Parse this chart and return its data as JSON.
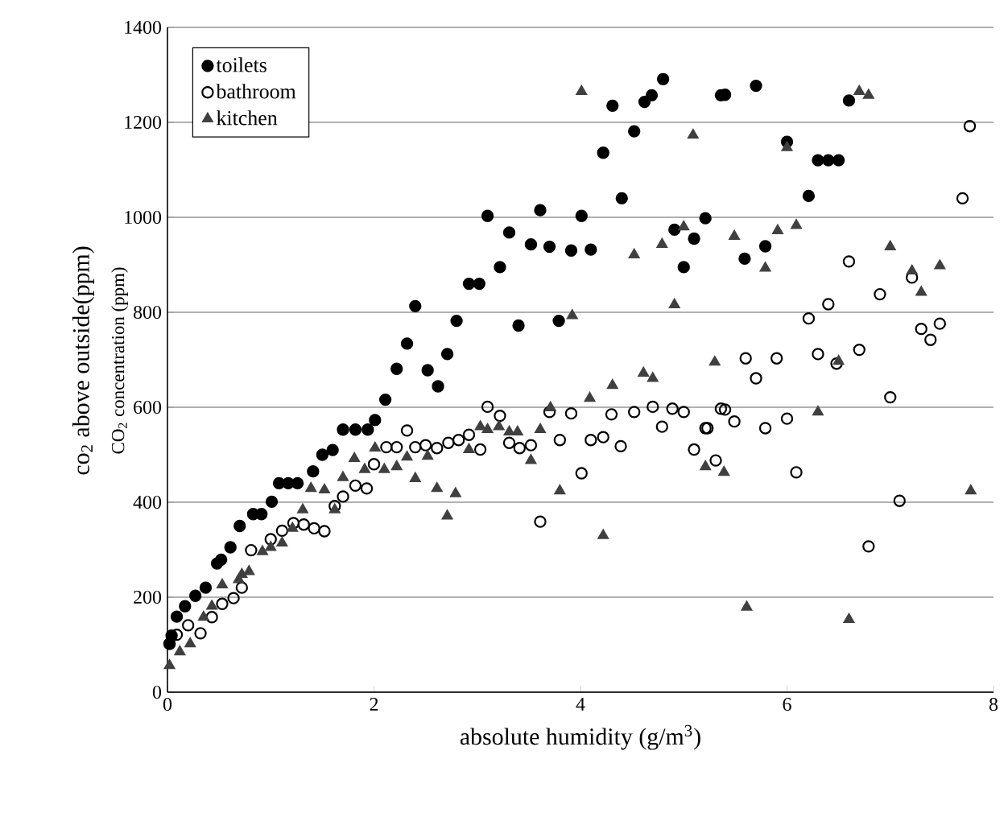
{
  "chart_data": {
    "type": "scatter",
    "xlabel": "absolute humidity (g/m$^{3}$)",
    "ylabel": "co$_{2}$ above outside(ppm)",
    "annotations": [
      "CO$_{2}$ concentration (ppm)"
    ],
    "xlim": [
      0,
      8
    ],
    "xticks": [
      0,
      2,
      4,
      6,
      8
    ],
    "ylim": [
      0,
      1400
    ],
    "yticks": [
      0,
      200,
      400,
      600,
      800,
      1000,
      1200,
      1400
    ],
    "grid": "y",
    "legend": "top left",
    "series": [
      {
        "name": "toilets",
        "color": "#000000",
        "marker": "circle",
        "x": [
          0.02,
          0.04,
          0.09,
          0.17,
          0.27,
          0.37,
          0.48,
          0.52,
          0.61,
          0.7,
          0.83,
          0.91,
          1.01,
          1.08,
          1.17,
          1.26,
          1.41,
          1.5,
          1.6,
          1.7,
          1.82,
          1.94,
          2.01,
          2.11,
          2.22,
          2.32,
          2.4,
          2.52,
          2.62,
          2.71,
          2.8,
          2.92,
          3.02,
          3.1,
          3.22,
          3.31,
          3.4,
          3.52,
          3.61,
          3.7,
          3.79,
          3.91,
          4.01,
          4.1,
          4.22,
          4.31,
          4.4,
          4.52,
          4.62,
          4.69,
          4.8,
          4.91,
          5.0,
          5.1,
          5.21,
          5.36,
          5.4,
          5.59,
          5.7,
          5.79,
          6.0,
          6.21,
          6.3,
          6.4,
          6.5,
          6.6
        ],
        "values": [
          102,
          119,
          159,
          181,
          203,
          220,
          271,
          279,
          305,
          350,
          375,
          375,
          401,
          440,
          440,
          440,
          465,
          500,
          510,
          553,
          553,
          553,
          573,
          616,
          681,
          734,
          813,
          678,
          644,
          712,
          782,
          860,
          860,
          1003,
          895,
          968,
          772,
          943,
          1015,
          938,
          782,
          930,
          1003,
          932,
          1136,
          1235,
          1040,
          1181,
          1243,
          1257,
          1291,
          974,
          895,
          955,
          998,
          1257,
          1258,
          913,
          1277,
          939,
          1159,
          1045,
          1120,
          1120,
          1120,
          1246
        ]
      },
      {
        "name": "bathroom",
        "color": "#000000",
        "marker": "open circle",
        "x": [
          0.02,
          0.09,
          0.2,
          0.32,
          0.43,
          0.53,
          0.64,
          0.72,
          0.81,
          1.0,
          1.11,
          1.22,
          1.32,
          1.42,
          1.52,
          1.62,
          1.7,
          1.82,
          1.93,
          2.0,
          2.12,
          2.22,
          2.32,
          2.4,
          2.5,
          2.61,
          2.72,
          2.82,
          2.92,
          3.03,
          3.1,
          3.22,
          3.31,
          3.41,
          3.52,
          3.61,
          3.7,
          3.8,
          3.91,
          4.01,
          4.1,
          4.22,
          4.3,
          4.39,
          4.52,
          4.7,
          4.79,
          4.89,
          5.0,
          5.1,
          5.21,
          5.23,
          5.31,
          5.36,
          5.4,
          5.49,
          5.6,
          5.7,
          5.79,
          5.9,
          6.0,
          6.09,
          6.21,
          6.3,
          6.4,
          6.48,
          6.6,
          6.7,
          6.79,
          6.9,
          7.0,
          7.09,
          7.21,
          7.3,
          7.39,
          7.48,
          7.7,
          7.77
        ],
        "values": [
          102,
          121,
          141,
          124,
          158,
          186,
          198,
          220,
          299,
          322,
          340,
          356,
          353,
          345,
          339,
          392,
          412,
          435,
          429,
          480,
          516,
          516,
          551,
          516,
          520,
          514,
          525,
          531,
          542,
          511,
          601,
          582,
          525,
          514,
          520,
          359,
          590,
          531,
          587,
          461,
          531,
          537,
          585,
          518,
          590,
          601,
          559,
          597,
          590,
          511,
          556,
          556,
          488,
          597,
          595,
          570,
          703,
          661,
          556,
          703,
          576,
          463,
          787,
          712,
          817,
          692,
          907,
          721,
          307,
          838,
          621,
          403,
          873,
          765,
          742,
          776,
          1040,
          1192
        ]
      },
      {
        "name": "kitchen",
        "color": "#404040",
        "marker": "triangle",
        "x": [
          0.02,
          0.12,
          0.22,
          0.35,
          0.43,
          0.53,
          0.69,
          0.72,
          0.79,
          0.92,
          1.0,
          1.11,
          1.21,
          1.31,
          1.39,
          1.52,
          1.62,
          1.7,
          1.81,
          1.91,
          2.01,
          2.1,
          2.22,
          2.32,
          2.4,
          2.52,
          2.61,
          2.71,
          2.79,
          2.92,
          3.03,
          3.1,
          3.21,
          3.31,
          3.39,
          3.52,
          3.61,
          3.71,
          3.8,
          3.92,
          4.01,
          4.09,
          4.22,
          4.31,
          4.52,
          4.61,
          4.7,
          4.79,
          4.91,
          5.0,
          5.09,
          5.21,
          5.3,
          5.39,
          5.49,
          5.61,
          5.79,
          5.91,
          6.0,
          6.09,
          6.3,
          6.5,
          6.6,
          6.7,
          6.79,
          7.0,
          7.21,
          7.3,
          7.48,
          7.78
        ],
        "values": [
          56,
          85,
          102,
          158,
          181,
          226,
          237,
          248,
          254,
          296,
          305,
          314,
          345,
          384,
          429,
          426,
          384,
          452,
          492,
          469,
          514,
          469,
          475,
          495,
          450,
          497,
          429,
          371,
          418,
          511,
          559,
          553,
          559,
          548,
          548,
          488,
          553,
          599,
          424,
          793,
          1265,
          619,
          330,
          646,
          921,
          672,
          661,
          943,
          816,
          980,
          1173,
          475,
          695,
          463,
          960,
          179,
          893,
          972,
          1147,
          983,
          590,
          697,
          153,
          1265,
          1257,
          938,
          887,
          842,
          898,
          424
        ]
      }
    ]
  }
}
